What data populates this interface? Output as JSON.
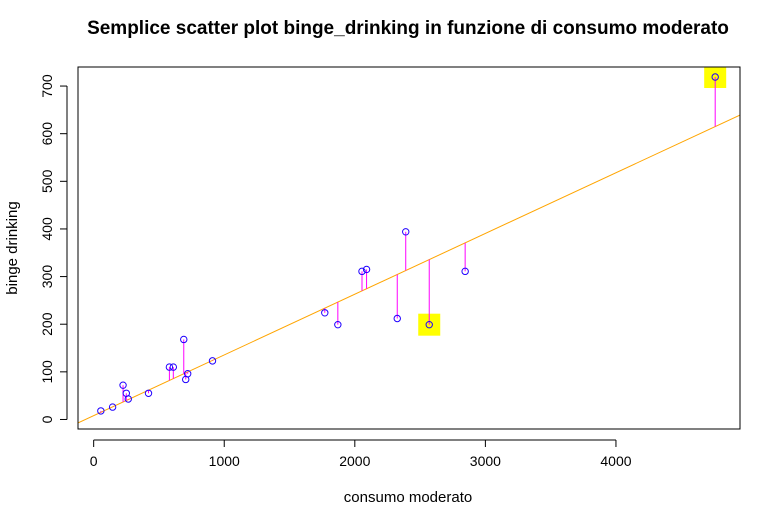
{
  "chart_data": {
    "type": "scatter",
    "title": "Semplice scatter plot binge_drinking in funzione di consumo moderato",
    "xlabel": "consumo moderato",
    "ylabel": "binge drinking",
    "xlim": [
      -120,
      4950
    ],
    "ylim": [
      -20,
      740
    ],
    "x_ticks": [
      0,
      1000,
      2000,
      3000,
      4000
    ],
    "y_ticks": [
      0,
      100,
      200,
      300,
      400,
      500,
      600,
      700
    ],
    "grid": false,
    "points": [
      {
        "x": 55,
        "y": 18
      },
      {
        "x": 145,
        "y": 26
      },
      {
        "x": 225,
        "y": 72
      },
      {
        "x": 250,
        "y": 55
      },
      {
        "x": 265,
        "y": 43
      },
      {
        "x": 420,
        "y": 55
      },
      {
        "x": 580,
        "y": 110
      },
      {
        "x": 610,
        "y": 110
      },
      {
        "x": 690,
        "y": 168
      },
      {
        "x": 705,
        "y": 84
      },
      {
        "x": 720,
        "y": 96
      },
      {
        "x": 910,
        "y": 123
      },
      {
        "x": 1770,
        "y": 224
      },
      {
        "x": 1870,
        "y": 199
      },
      {
        "x": 2055,
        "y": 311
      },
      {
        "x": 2090,
        "y": 315
      },
      {
        "x": 2325,
        "y": 212
      },
      {
        "x": 2390,
        "y": 394
      },
      {
        "x": 2570,
        "y": 199
      },
      {
        "x": 2845,
        "y": 311
      },
      {
        "x": 4760,
        "y": 719
      }
    ],
    "regression_line": {
      "intercept": 8,
      "slope": 0.1275
    },
    "highlighted_points": [
      {
        "x": 2570,
        "y": 199
      },
      {
        "x": 4760,
        "y": 719
      }
    ],
    "colors": {
      "points": "#1f00ff",
      "residuals": "#ff00ff",
      "regression": "#ffa500",
      "highlight": "#ffff00"
    }
  }
}
